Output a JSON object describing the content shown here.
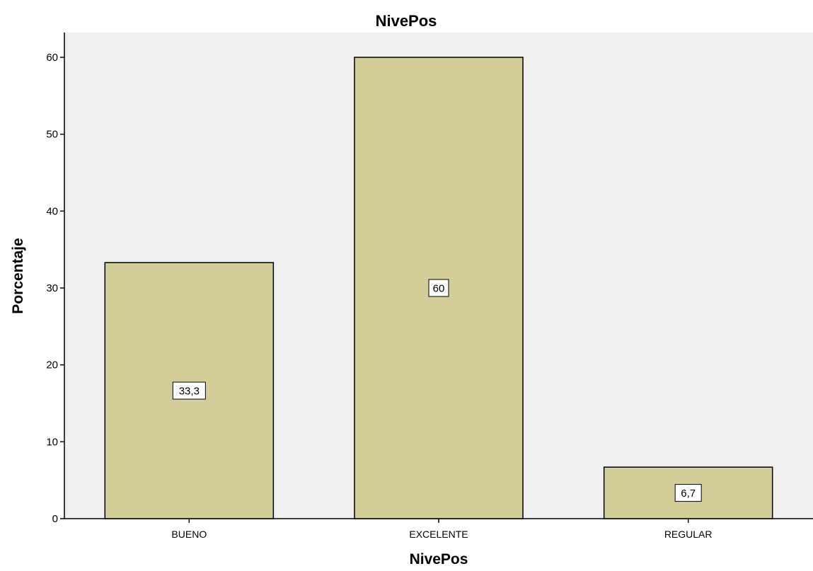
{
  "chart_data": {
    "type": "bar",
    "title": "NivePos",
    "xlabel": "NivePos",
    "ylabel": "Porcentaje",
    "categories": [
      "BUENO",
      "EXCELENTE",
      "REGULAR"
    ],
    "values": [
      33.3,
      60,
      6.7
    ],
    "data_labels": [
      "33,3",
      "60",
      "6,7"
    ],
    "y_ticks": [
      0,
      10,
      20,
      30,
      40,
      50,
      60
    ],
    "ylim": [
      0,
      60
    ],
    "grid": false,
    "legend": "none",
    "colors": {
      "bar_fill": "#d3cd98",
      "bar_stroke": "#000000",
      "plot_background": "#f0f0f0",
      "label_box": "#ffffff"
    }
  }
}
